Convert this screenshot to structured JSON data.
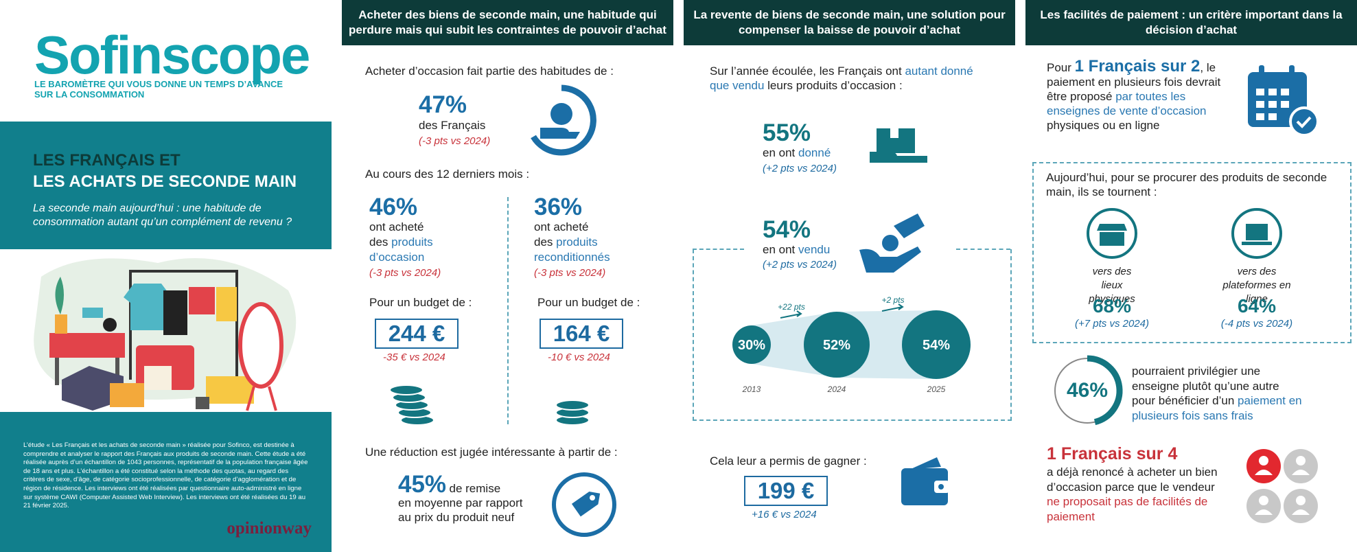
{
  "brand": {
    "name": "Sofinscope",
    "tagline_line1": "LE BAROMÈTRE QUI VOUS DONNE UN TEMPS D’AVANCE",
    "tagline_line2": "SUR LA CONSOMMATION"
  },
  "hero": {
    "title_line1": "LES FRANÇAIS ET",
    "title_line2": "LES ACHATS DE SECONDE MAIN",
    "subtitle": "La seconde main aujourd’hui : une habitude de consommation autant qu’un complément de revenu ?"
  },
  "methodology": "L’étude « Les Français et les achats de seconde main » réalisée pour Sofinco, est destinée à comprendre et analyser le rapport des Français aux produits de seconde main. Cette étude a été réalisée auprès d’un échantillon de 1043 personnes, représentatif de la population française âgée de 18 ans et plus. L’échantillon a été constitué selon la méthode des quotas, au regard des critères de sexe, d’âge, de catégorie socioprofessionnelle, de catégorie d’agglomération et de région de résidence. Les interviews ont été réalisées par questionnaire auto-administré en ligne sur système CAWI (Computer Assisted Web Interview). Les interviews ont été réalisées du 19 au 21 février 2025.",
  "partner": "opinionway",
  "buying": {
    "header": "Acheter des biens de seconde main, une habitude qui perdure mais qui subit les contraintes de pouvoir d’achat",
    "habit_intro": "Acheter d’occasion fait partie des habitudes de :",
    "habit_value": "47%",
    "habit_label": "des Français",
    "habit_change": "(-3 pts vs 2024)",
    "months_intro": "Au cours des 12 derniers mois :",
    "groups": [
      {
        "value": "46%",
        "text1": "ont acheté",
        "text2": "des",
        "highlight": "produits d’occasion",
        "change": "(-3 pts vs 2024)",
        "budget_intro": "Pour un budget de :",
        "budget": "244 €",
        "budget_change": "-35 € vs 2024"
      },
      {
        "value": "36%",
        "text1": "ont acheté",
        "text2": "des",
        "highlight": "produits reconditionnés",
        "change": "(-3 pts vs 2024)",
        "budget_intro": "Pour un budget de :",
        "budget": "164 €",
        "budget_change": "-10 € vs 2024"
      }
    ],
    "discount_intro": "Une réduction est jugée intéressante à partir de :",
    "discount_value": "45%",
    "discount_label": "de remise",
    "discount_text": "en moyenne par rapport au prix du produit neuf"
  },
  "reselling": {
    "header": "La revente de biens de seconde main, une solution pour compenser la baisse de pouvoir d’achat",
    "intro_pre": "Sur l’année écoulée, les Français ont ",
    "intro_highlight": "autant donné que vendu",
    "intro_post": " leurs produits d’occasion :",
    "given": {
      "value": "55%",
      "text": "en ont ",
      "highlight": "donné",
      "change": "(+2 pts vs 2024)"
    },
    "sold": {
      "value": "54%",
      "text": "en ont ",
      "highlight": "vendu",
      "change": "(+2 pts vs 2024)"
    },
    "bubbles": [
      {
        "year": "2013",
        "value": "30%"
      },
      {
        "year": "2024",
        "value": "52%"
      },
      {
        "year": "2025",
        "value": "54%"
      }
    ],
    "steps": [
      "+22 pts",
      "+2 pts"
    ],
    "gain_intro": "Cela leur a permis de gagner :",
    "gain": "199 €",
    "gain_change": "+16 € vs 2024"
  },
  "payment": {
    "header": "Les facilités de paiement : un critère important dans la décision d’achat",
    "top_pre": "Pour ",
    "top_big": "1 Français sur 2",
    "top_comma": ",",
    "top_text1": " le paiement en plusieurs fois devrait être proposé ",
    "top_highlight": "par toutes les enseignes de vente d’occasion",
    "top_text2": " physiques ou en ligne",
    "channels_intro": "Aujourd’hui, pour se procurer des produits de seconde main, ils se tournent :",
    "channels": [
      {
        "label": "vers des lieux physiques",
        "value": "68%",
        "change": "(+7 pts vs 2024)"
      },
      {
        "label": "vers des plateformes en ligne",
        "value": "64%",
        "change": "(-4 pts vs 2024)"
      }
    ],
    "ring_value": "46%",
    "ring_text": "pourraient privilégier une enseigne plutôt qu’une autre pour bénéficier d’un ",
    "ring_highlight": "paiement en plusieurs fois sans frais",
    "renounce_big": "1 Français sur 4",
    "renounce_text": "a déjà renoncé à acheter un bien d’occasion parce que le vendeur ",
    "renounce_highlight": "ne proposait pas de facilités de paiement"
  }
}
